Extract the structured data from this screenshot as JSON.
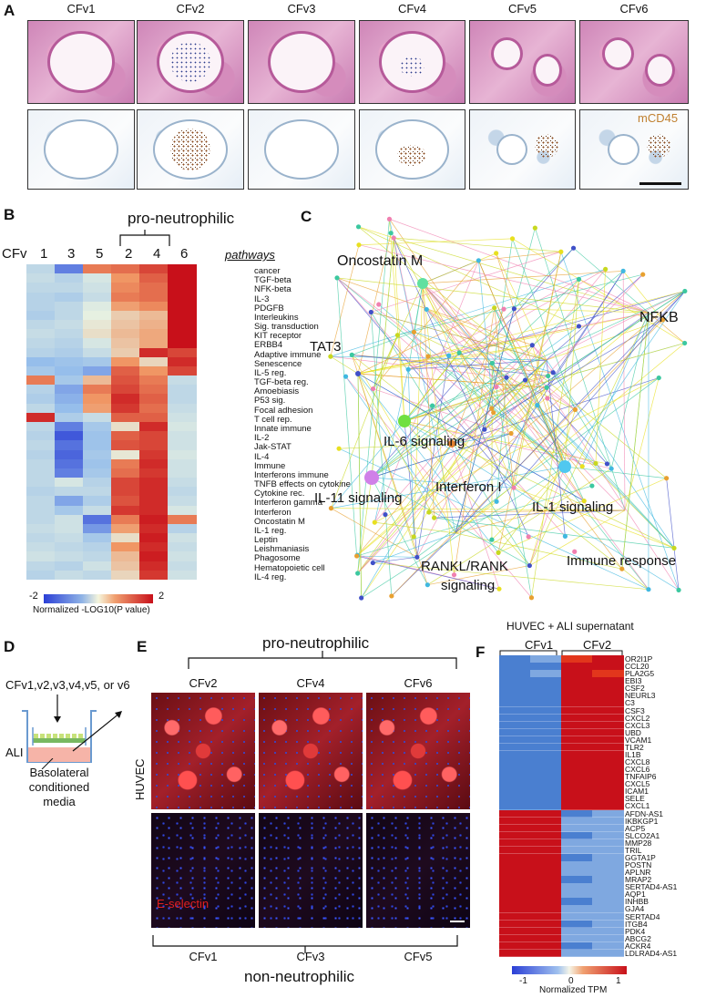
{
  "panel_a": {
    "label": "A",
    "columns": [
      "CFv1",
      "CFv2",
      "CFv3",
      "CFv4",
      "CFv5",
      "CFv6"
    ],
    "stain_label": "mCD45"
  },
  "panel_b": {
    "label": "B",
    "bracket_label": "pro-neutrophilic",
    "row_axis_label": "CFv",
    "col_labels": [
      "1",
      "3",
      "5",
      "2",
      "4",
      "6"
    ],
    "pathways_header": "pathways",
    "pathways": [
      "cancer",
      "TGF-beta",
      "NFK-beta",
      "IL-3",
      "PDGFB",
      "Interleukins",
      "Sig. transduction",
      "KIT receptor",
      "ERBB4",
      "Adaptive immune",
      "Senescence",
      "IL-5 reg.",
      "TGF-beta reg.",
      "Amoebiasis",
      "P53 sig.",
      "Focal adhesion",
      "T cell rep.",
      "Innate immune",
      "IL-2",
      "Jak-STAT",
      "IL-4",
      "Immune",
      "Interferons immune",
      "TNFB effects on cytokine",
      "Cytokine rec.",
      "Interferon gamma",
      "Interferon",
      "Oncostatin M",
      "IL-1 reg.",
      "Leptin",
      "Leishmaniasis",
      "Phagosome",
      "Hematopoietic cell",
      "IL-4 reg."
    ],
    "legend_min": "-2",
    "legend_max": "2",
    "legend_title": "Normalized -LOG10(P value)",
    "colors": {
      "low": "#2b3fd6",
      "mid": "#f5f5dc",
      "high": "#c8101a"
    }
  },
  "panel_c": {
    "label": "C",
    "nodes": [
      "Oncostatin M",
      "NFKB",
      "TAT3",
      "IL-6 signaling",
      "IL-11 signaling",
      "Interferon I",
      "IL-1 signaling",
      "Immune response",
      "RANKL/RANK",
      "signaling"
    ]
  },
  "panel_d": {
    "label": "D",
    "top_text": "CFv1,v2,v3,v4,v5, or v6",
    "ali": "ALI",
    "bottom_text": [
      "Basolateral",
      "conditioned",
      "media"
    ]
  },
  "panel_e": {
    "label": "E",
    "top_bracket": "pro-neutrophilic",
    "top_cols": [
      "CFv2",
      "CFv4",
      "CFv6"
    ],
    "side_label": "HUVEC",
    "stain": "E-selectin",
    "bottom_cols": [
      "CFv1",
      "CFv3",
      "CFv5"
    ],
    "bottom_bracket": "non-neutrophilic"
  },
  "panel_f": {
    "label": "F",
    "title": "HUVEC + ALI supernatant",
    "groups": [
      "CFv1",
      "CFv2"
    ],
    "genes": [
      "OR2I1P",
      "CCL20",
      "PLA2G5",
      "EBI3",
      "CSF2",
      "NEURL3",
      "C3",
      "CSF3",
      "CXCL2",
      "CXCL3",
      "UBD",
      "VCAM1",
      "TLR2",
      "IL1B",
      "CXCL8",
      "CXCL6",
      "TNFAIP6",
      "CXCL5",
      "ICAM1",
      "SELE",
      "CXCL1",
      "AFDN-AS1",
      "IKBKGP1",
      "ACP5",
      "SLCO2A1",
      "MMP28",
      "TRIL",
      "GGTA1P",
      "POSTN",
      "APLNR",
      "MRAP2",
      "SERTAD4-AS1",
      "AQP1",
      "INHBB",
      "GJA4",
      "SERTAD4",
      "ITGB4",
      "PDK4",
      "ABCG2",
      "ACKR4",
      "LDLRAD4-AS1"
    ],
    "legend_min": "-1",
    "legend_mid": "0",
    "legend_max": "1",
    "legend_title": "Normalized TPM"
  }
}
